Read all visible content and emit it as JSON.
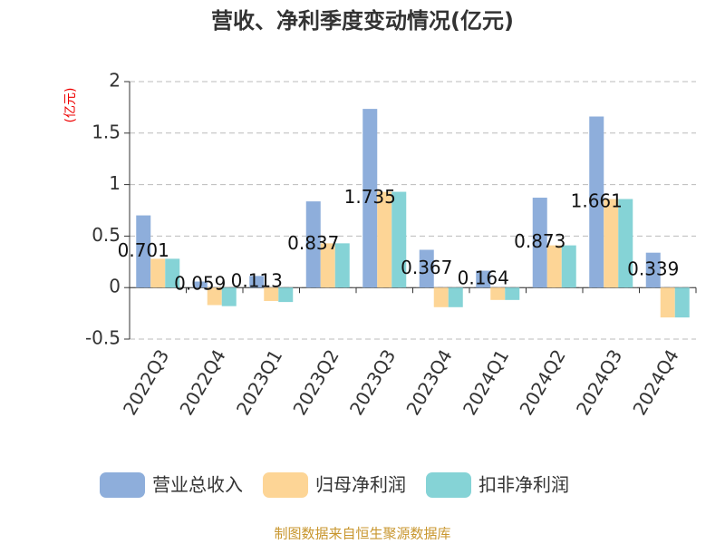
{
  "chart_data": {
    "type": "bar",
    "title": "营收、净利季度变动情况(亿元)",
    "y_label": "(亿元)",
    "categories": [
      "2022Q3",
      "2022Q4",
      "2023Q1",
      "2023Q2",
      "2023Q3",
      "2023Q4",
      "2024Q1",
      "2024Q2",
      "2024Q3",
      "2024Q4"
    ],
    "series": [
      {
        "name": "营业总收入",
        "color": "#8eaedb",
        "values": [
          0.701,
          0.059,
          0.113,
          0.837,
          1.735,
          0.367,
          0.164,
          0.873,
          1.661,
          0.339
        ]
      },
      {
        "name": "归母净利润",
        "color": "#fdd596",
        "values": [
          0.28,
          -0.17,
          -0.13,
          0.43,
          0.93,
          -0.19,
          -0.12,
          0.41,
          0.86,
          -0.29
        ]
      },
      {
        "name": "扣非净利润",
        "color": "#85d3d6",
        "values": [
          0.28,
          -0.18,
          -0.14,
          0.43,
          0.93,
          -0.19,
          -0.12,
          0.41,
          0.86,
          -0.29
        ]
      }
    ],
    "ylim": [
      -0.5,
      2
    ],
    "yticks": [
      -0.5,
      0,
      0.5,
      1,
      1.5,
      2
    ],
    "grid": true,
    "source": "制图数据来自恒生聚源数据库"
  }
}
